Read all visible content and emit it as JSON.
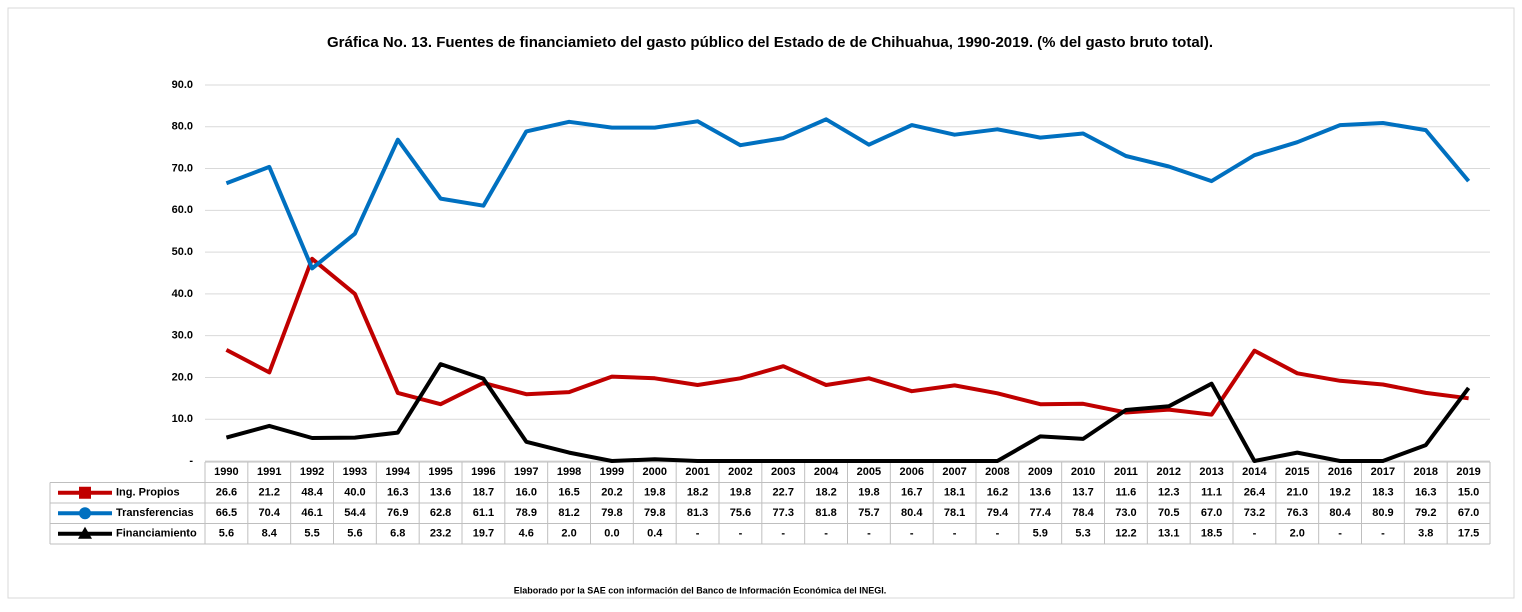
{
  "chart_data": {
    "type": "line",
    "title": "Gráfica No. 13. Fuentes de financiamieto del gasto público del Estado de de Chihuahua,  1990-2019. (% del gasto bruto total).",
    "source": "Elaborado por la SAE con información del Banco de Información Económica del INEGI.",
    "categories": [
      "1990",
      "1991",
      "1992",
      "1993",
      "1994",
      "1995",
      "1996",
      "1997",
      "1998",
      "1999",
      "2000",
      "2001",
      "2002",
      "2003",
      "2004",
      "2005",
      "2006",
      "2007",
      "2008",
      "2009",
      "2010",
      "2011",
      "2012",
      "2013",
      "2014",
      "2015",
      "2016",
      "2017",
      "2018",
      "2019"
    ],
    "ylim": [
      0,
      90
    ],
    "yticks": [
      {
        "value": 0,
        "label": "-"
      },
      {
        "value": 10,
        "label": "10.0"
      },
      {
        "value": 20,
        "label": "20.0"
      },
      {
        "value": 30,
        "label": "30.0"
      },
      {
        "value": 40,
        "label": "40.0"
      },
      {
        "value": 50,
        "label": "50.0"
      },
      {
        "value": 60,
        "label": "60.0"
      },
      {
        "value": 70,
        "label": "70.0"
      },
      {
        "value": 80,
        "label": "80.0"
      },
      {
        "value": 90,
        "label": "90.0"
      }
    ],
    "grid": true,
    "series": [
      {
        "name": "Ing. Propios",
        "color": "#c00000",
        "marker": "square",
        "values": [
          26.6,
          21.2,
          48.4,
          40.0,
          16.3,
          13.6,
          18.7,
          16.0,
          16.5,
          20.2,
          19.8,
          18.2,
          19.8,
          22.7,
          18.2,
          19.8,
          16.7,
          18.1,
          16.2,
          13.6,
          13.7,
          11.6,
          12.3,
          11.1,
          26.4,
          21.0,
          19.2,
          18.3,
          16.3,
          15.0
        ],
        "value_labels": [
          "26.6",
          "21.2",
          "48.4",
          "40.0",
          "16.3",
          "13.6",
          "18.7",
          "16.0",
          "16.5",
          "20.2",
          "19.8",
          "18.2",
          "19.8",
          "22.7",
          "18.2",
          "19.8",
          "16.7",
          "18.1",
          "16.2",
          "13.6",
          "13.7",
          "11.6",
          "12.3",
          "11.1",
          "26.4",
          "21.0",
          "19.2",
          "18.3",
          "16.3",
          "15.0"
        ]
      },
      {
        "name": "Transferencias",
        "color": "#0070c0",
        "marker": "circle",
        "values": [
          66.5,
          70.4,
          46.1,
          54.4,
          76.9,
          62.8,
          61.1,
          78.9,
          81.2,
          79.8,
          79.8,
          81.3,
          75.6,
          77.3,
          81.8,
          75.7,
          80.4,
          78.1,
          79.4,
          77.4,
          78.4,
          73.0,
          70.5,
          67.0,
          73.2,
          76.3,
          80.4,
          80.9,
          79.2,
          67.0
        ],
        "value_labels": [
          "66.5",
          "70.4",
          "46.1",
          "54.4",
          "76.9",
          "62.8",
          "61.1",
          "78.9",
          "81.2",
          "79.8",
          "79.8",
          "81.3",
          "75.6",
          "77.3",
          "81.8",
          "75.7",
          "80.4",
          "78.1",
          "79.4",
          "77.4",
          "78.4",
          "73.0",
          "70.5",
          "67.0",
          "73.2",
          "76.3",
          "80.4",
          "80.9",
          "79.2",
          "67.0"
        ]
      },
      {
        "name": "Financiamiento",
        "color": "#000000",
        "marker": "triangle",
        "values": [
          5.6,
          8.4,
          5.5,
          5.6,
          6.8,
          23.2,
          19.7,
          4.6,
          2.0,
          0.0,
          0.4,
          0,
          0,
          0,
          0,
          0,
          0,
          0,
          0,
          5.9,
          5.3,
          12.2,
          13.1,
          18.5,
          0,
          2.0,
          0,
          0,
          3.8,
          17.5
        ],
        "value_labels": [
          "5.6",
          "8.4",
          "5.5",
          "5.6",
          "6.8",
          "23.2",
          "19.7",
          "4.6",
          "2.0",
          "0.0",
          "0.4",
          "-",
          "-",
          "-",
          "-",
          "-",
          "-",
          "-",
          "-",
          "5.9",
          "5.3",
          "12.2",
          "13.1",
          "18.5",
          "-",
          "2.0",
          "-",
          "-",
          "3.8",
          "17.5"
        ]
      }
    ]
  }
}
